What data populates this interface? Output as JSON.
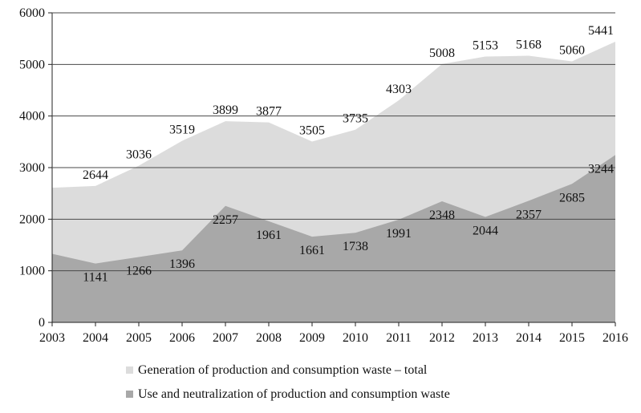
{
  "chart_data": {
    "type": "area",
    "x": [
      "2003",
      "2004",
      "2005",
      "2006",
      "2007",
      "2008",
      "2009",
      "2010",
      "2011",
      "2012",
      "2013",
      "2014",
      "2015",
      "2016"
    ],
    "ylim": [
      0,
      6000
    ],
    "yticks": [
      0,
      1000,
      2000,
      3000,
      4000,
      5000,
      6000
    ],
    "grid": true,
    "legend_position": "bottom",
    "series": [
      {
        "name": "Generation of production and consumption waste – total",
        "color": "#dcdcdc",
        "values": [
          2610,
          2644,
          3036,
          3519,
          3899,
          3877,
          3505,
          3735,
          4303,
          5008,
          5153,
          5168,
          5060,
          5441
        ],
        "labels": [
          "",
          "2644",
          "3036",
          "3519",
          "3899",
          "3877",
          "3505",
          "3735",
          "4303",
          "5008",
          "5153",
          "5168",
          "5060",
          "5441"
        ]
      },
      {
        "name": "Use and neutralization of production and consumption waste",
        "color": "#a8a8a8",
        "values": [
          1330,
          1141,
          1266,
          1396,
          2257,
          1961,
          1661,
          1738,
          1991,
          2348,
          2044,
          2357,
          2685,
          3244
        ],
        "labels": [
          "",
          "1141",
          "1266",
          "1396",
          "2257",
          "1961",
          "1661",
          "1738",
          "1991",
          "2348",
          "2044",
          "2357",
          "2685",
          "3244"
        ]
      }
    ]
  }
}
